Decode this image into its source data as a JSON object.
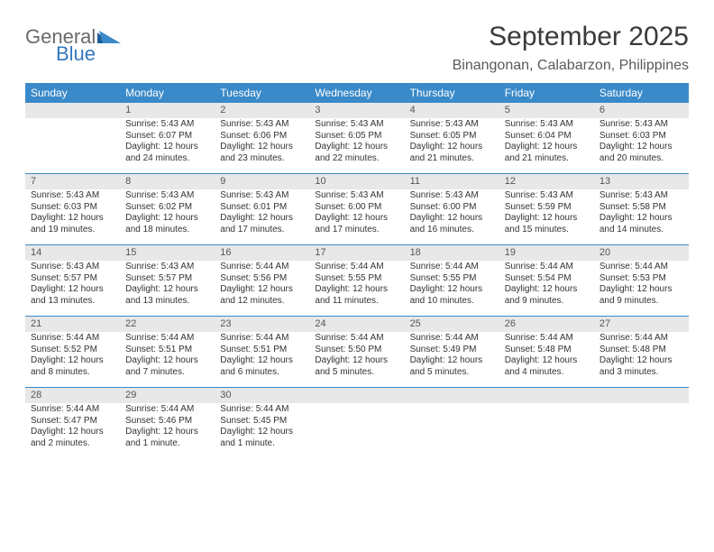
{
  "logo": {
    "general": "General",
    "blue": "Blue"
  },
  "title": "September 2025",
  "location": "Binangonan, Calabarzon, Philippines",
  "colors": {
    "header_bg": "#3a8ac9",
    "header_text": "#ffffff",
    "daynum_bg": "#e8e8e8",
    "daynum_text": "#555555",
    "border": "#3a8ac9",
    "body_text": "#333333",
    "title_text": "#3a3a3a",
    "logo_gray": "#6a6a6a",
    "logo_blue": "#3478bc"
  },
  "day_names": [
    "Sunday",
    "Monday",
    "Tuesday",
    "Wednesday",
    "Thursday",
    "Friday",
    "Saturday"
  ],
  "weeks": [
    [
      {
        "n": "",
        "sr": "",
        "ss": "",
        "dl": ""
      },
      {
        "n": "1",
        "sr": "Sunrise: 5:43 AM",
        "ss": "Sunset: 6:07 PM",
        "dl": "Daylight: 12 hours and 24 minutes."
      },
      {
        "n": "2",
        "sr": "Sunrise: 5:43 AM",
        "ss": "Sunset: 6:06 PM",
        "dl": "Daylight: 12 hours and 23 minutes."
      },
      {
        "n": "3",
        "sr": "Sunrise: 5:43 AM",
        "ss": "Sunset: 6:05 PM",
        "dl": "Daylight: 12 hours and 22 minutes."
      },
      {
        "n": "4",
        "sr": "Sunrise: 5:43 AM",
        "ss": "Sunset: 6:05 PM",
        "dl": "Daylight: 12 hours and 21 minutes."
      },
      {
        "n": "5",
        "sr": "Sunrise: 5:43 AM",
        "ss": "Sunset: 6:04 PM",
        "dl": "Daylight: 12 hours and 21 minutes."
      },
      {
        "n": "6",
        "sr": "Sunrise: 5:43 AM",
        "ss": "Sunset: 6:03 PM",
        "dl": "Daylight: 12 hours and 20 minutes."
      }
    ],
    [
      {
        "n": "7",
        "sr": "Sunrise: 5:43 AM",
        "ss": "Sunset: 6:03 PM",
        "dl": "Daylight: 12 hours and 19 minutes."
      },
      {
        "n": "8",
        "sr": "Sunrise: 5:43 AM",
        "ss": "Sunset: 6:02 PM",
        "dl": "Daylight: 12 hours and 18 minutes."
      },
      {
        "n": "9",
        "sr": "Sunrise: 5:43 AM",
        "ss": "Sunset: 6:01 PM",
        "dl": "Daylight: 12 hours and 17 minutes."
      },
      {
        "n": "10",
        "sr": "Sunrise: 5:43 AM",
        "ss": "Sunset: 6:00 PM",
        "dl": "Daylight: 12 hours and 17 minutes."
      },
      {
        "n": "11",
        "sr": "Sunrise: 5:43 AM",
        "ss": "Sunset: 6:00 PM",
        "dl": "Daylight: 12 hours and 16 minutes."
      },
      {
        "n": "12",
        "sr": "Sunrise: 5:43 AM",
        "ss": "Sunset: 5:59 PM",
        "dl": "Daylight: 12 hours and 15 minutes."
      },
      {
        "n": "13",
        "sr": "Sunrise: 5:43 AM",
        "ss": "Sunset: 5:58 PM",
        "dl": "Daylight: 12 hours and 14 minutes."
      }
    ],
    [
      {
        "n": "14",
        "sr": "Sunrise: 5:43 AM",
        "ss": "Sunset: 5:57 PM",
        "dl": "Daylight: 12 hours and 13 minutes."
      },
      {
        "n": "15",
        "sr": "Sunrise: 5:43 AM",
        "ss": "Sunset: 5:57 PM",
        "dl": "Daylight: 12 hours and 13 minutes."
      },
      {
        "n": "16",
        "sr": "Sunrise: 5:44 AM",
        "ss": "Sunset: 5:56 PM",
        "dl": "Daylight: 12 hours and 12 minutes."
      },
      {
        "n": "17",
        "sr": "Sunrise: 5:44 AM",
        "ss": "Sunset: 5:55 PM",
        "dl": "Daylight: 12 hours and 11 minutes."
      },
      {
        "n": "18",
        "sr": "Sunrise: 5:44 AM",
        "ss": "Sunset: 5:55 PM",
        "dl": "Daylight: 12 hours and 10 minutes."
      },
      {
        "n": "19",
        "sr": "Sunrise: 5:44 AM",
        "ss": "Sunset: 5:54 PM",
        "dl": "Daylight: 12 hours and 9 minutes."
      },
      {
        "n": "20",
        "sr": "Sunrise: 5:44 AM",
        "ss": "Sunset: 5:53 PM",
        "dl": "Daylight: 12 hours and 9 minutes."
      }
    ],
    [
      {
        "n": "21",
        "sr": "Sunrise: 5:44 AM",
        "ss": "Sunset: 5:52 PM",
        "dl": "Daylight: 12 hours and 8 minutes."
      },
      {
        "n": "22",
        "sr": "Sunrise: 5:44 AM",
        "ss": "Sunset: 5:51 PM",
        "dl": "Daylight: 12 hours and 7 minutes."
      },
      {
        "n": "23",
        "sr": "Sunrise: 5:44 AM",
        "ss": "Sunset: 5:51 PM",
        "dl": "Daylight: 12 hours and 6 minutes."
      },
      {
        "n": "24",
        "sr": "Sunrise: 5:44 AM",
        "ss": "Sunset: 5:50 PM",
        "dl": "Daylight: 12 hours and 5 minutes."
      },
      {
        "n": "25",
        "sr": "Sunrise: 5:44 AM",
        "ss": "Sunset: 5:49 PM",
        "dl": "Daylight: 12 hours and 5 minutes."
      },
      {
        "n": "26",
        "sr": "Sunrise: 5:44 AM",
        "ss": "Sunset: 5:48 PM",
        "dl": "Daylight: 12 hours and 4 minutes."
      },
      {
        "n": "27",
        "sr": "Sunrise: 5:44 AM",
        "ss": "Sunset: 5:48 PM",
        "dl": "Daylight: 12 hours and 3 minutes."
      }
    ],
    [
      {
        "n": "28",
        "sr": "Sunrise: 5:44 AM",
        "ss": "Sunset: 5:47 PM",
        "dl": "Daylight: 12 hours and 2 minutes."
      },
      {
        "n": "29",
        "sr": "Sunrise: 5:44 AM",
        "ss": "Sunset: 5:46 PM",
        "dl": "Daylight: 12 hours and 1 minute."
      },
      {
        "n": "30",
        "sr": "Sunrise: 5:44 AM",
        "ss": "Sunset: 5:45 PM",
        "dl": "Daylight: 12 hours and 1 minute."
      },
      {
        "n": "",
        "sr": "",
        "ss": "",
        "dl": ""
      },
      {
        "n": "",
        "sr": "",
        "ss": "",
        "dl": ""
      },
      {
        "n": "",
        "sr": "",
        "ss": "",
        "dl": ""
      },
      {
        "n": "",
        "sr": "",
        "ss": "",
        "dl": ""
      }
    ]
  ]
}
